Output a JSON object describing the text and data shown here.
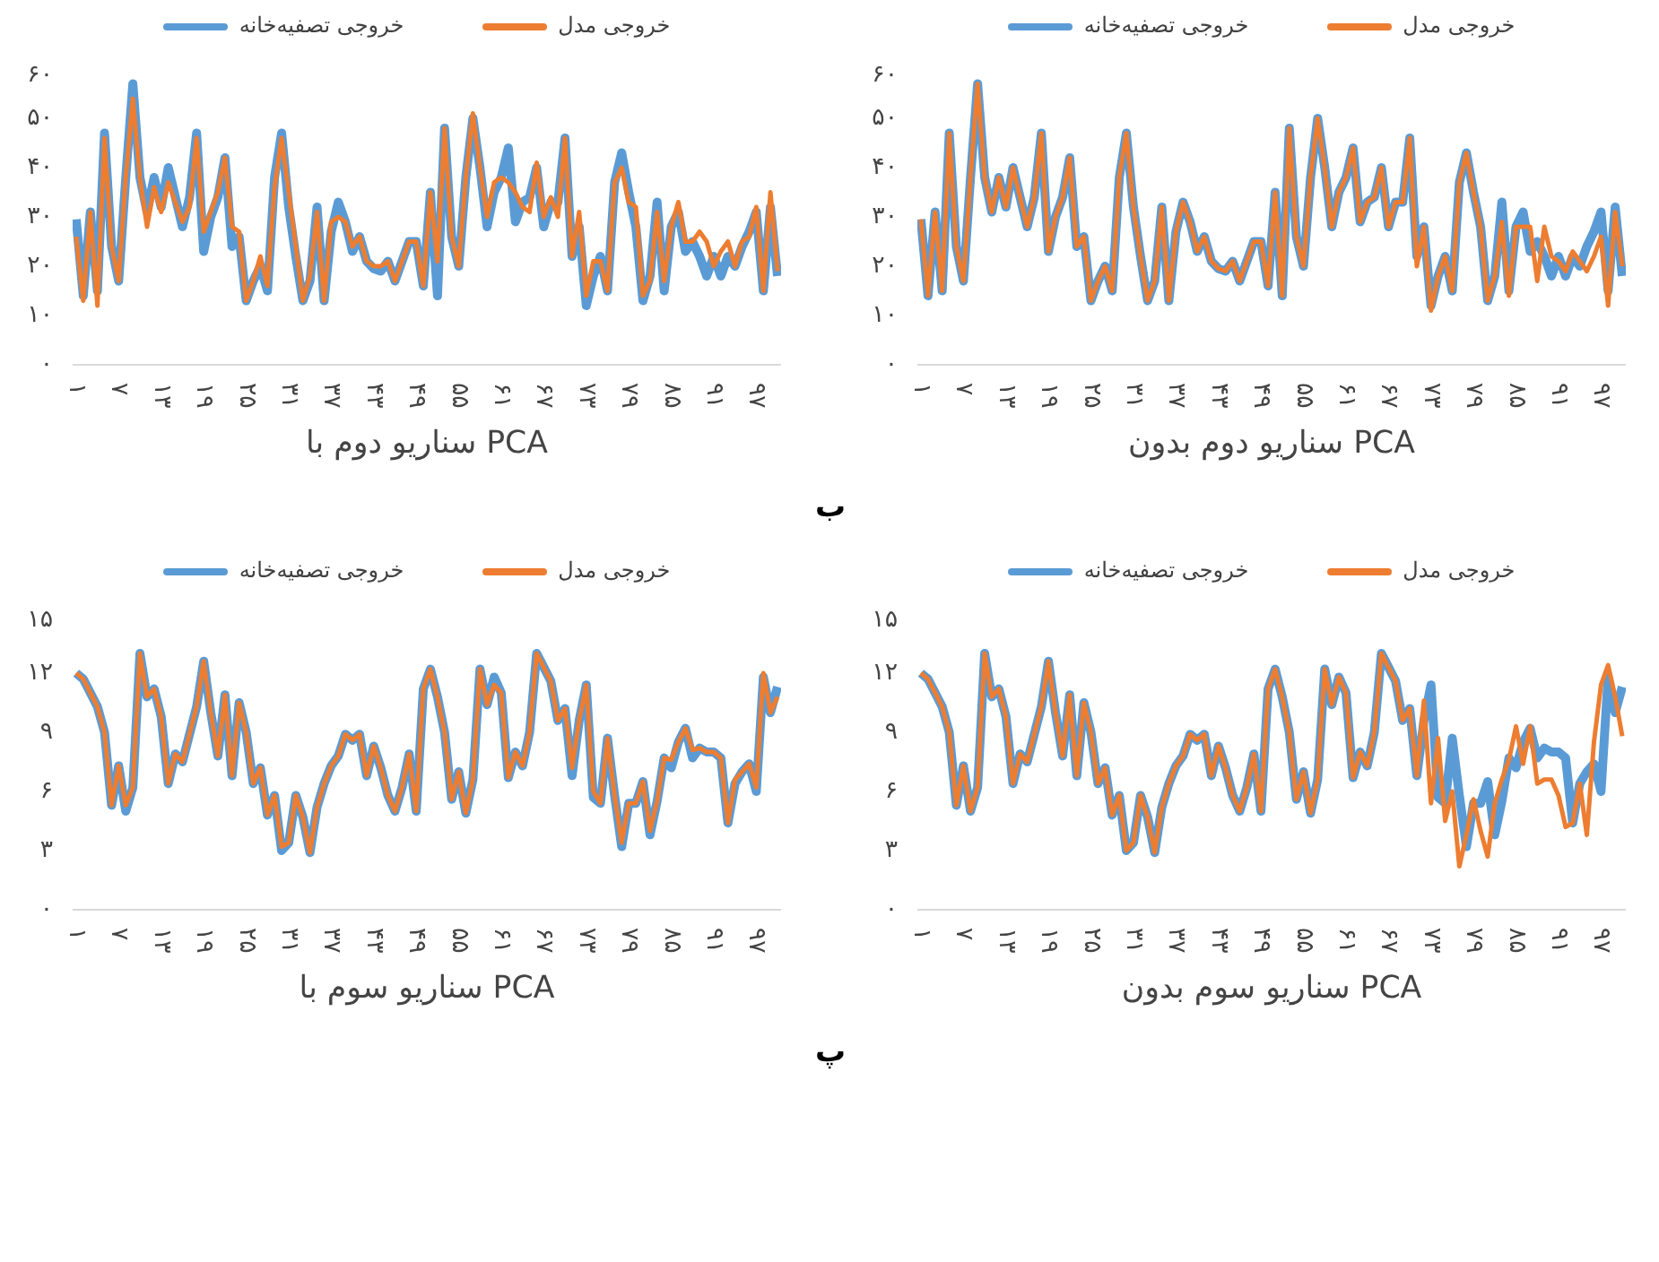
{
  "chart_data": [
    {
      "type": "line",
      "title": "سناریو دوم با PCA",
      "annotations": [
        "ب"
      ],
      "categories": [
        "۱",
        null,
        null,
        null,
        null,
        null,
        "۷",
        null,
        null,
        null,
        null,
        null,
        "۱۳",
        null,
        null,
        null,
        null,
        null,
        "۱۹",
        null,
        null,
        null,
        null,
        null,
        "۲۵",
        null,
        null,
        null,
        null,
        null,
        "۳۱",
        null,
        null,
        null,
        null,
        null,
        "۳۷",
        null,
        null,
        null,
        null,
        null,
        "۴۳",
        null,
        null,
        null,
        null,
        null,
        "۴۹",
        null,
        null,
        null,
        null,
        null,
        "۵۵",
        null,
        null,
        null,
        null,
        null,
        "۶۱",
        null,
        null,
        null,
        null,
        null,
        "۶۷",
        null,
        null,
        null,
        null,
        null,
        "۷۳",
        null,
        null,
        null,
        null,
        null,
        "۷۹",
        null,
        null,
        null,
        null,
        null,
        "۸۵",
        null,
        null,
        null,
        null,
        null,
        "۹۱",
        null,
        null,
        null,
        null,
        null,
        "۹۷",
        null,
        null,
        null
      ],
      "ylim": [
        0,
        60
      ],
      "yticks": [
        {
          "value": 0,
          "label": "۰"
        },
        {
          "value": 10,
          "label": "۱۰"
        },
        {
          "value": 20,
          "label": "۲۰"
        },
        {
          "value": 30,
          "label": "۳۰"
        },
        {
          "value": 40,
          "label": "۴۰"
        },
        {
          "value": 50,
          "label": "۵۰"
        },
        {
          "value": 60,
          "label": "۶۰"
        }
      ],
      "grid": false,
      "legend": "top",
      "series": [
        {
          "name": "خروجی تصفیه‌خانه",
          "color": "#5b9bd5",
          "values": [
            29.5,
            14,
            31,
            15,
            47,
            24,
            17,
            38,
            57,
            38,
            31,
            38,
            32,
            40,
            34,
            28,
            34,
            47,
            23,
            30,
            34,
            42,
            24,
            26,
            13,
            17,
            20,
            15,
            38,
            47,
            32,
            22,
            13,
            17,
            32,
            13,
            27,
            33,
            29,
            23,
            26,
            21,
            19.5,
            19,
            21,
            17,
            21,
            25,
            25,
            16,
            35,
            14,
            48,
            26,
            20,
            38,
            50,
            40,
            28,
            35,
            38,
            44,
            29,
            33,
            34,
            40,
            28,
            33,
            33,
            46,
            22,
            28,
            12,
            18,
            22,
            15,
            37,
            43,
            35,
            28,
            13,
            18,
            33,
            15,
            28,
            31,
            23,
            25,
            22,
            18,
            22,
            18,
            22,
            20,
            24,
            27,
            31,
            15,
            32,
            18
          ]
        },
        {
          "name": "خروجی مدل",
          "color": "#ed7d31",
          "values": [
            26,
            13,
            31,
            12,
            46,
            24,
            17,
            38,
            54,
            38,
            28,
            36,
            31,
            37,
            33,
            29,
            32,
            46,
            27,
            31,
            35,
            42,
            28,
            27,
            13,
            17,
            22,
            16,
            36,
            46,
            35,
            24,
            13,
            18,
            31,
            13,
            29,
            30,
            29,
            24,
            26,
            21,
            20,
            20,
            21,
            17,
            21,
            25,
            25,
            16,
            35,
            21,
            48,
            26,
            20,
            38,
            51,
            40,
            30,
            37,
            38,
            37,
            35,
            32,
            31,
            41,
            30,
            34,
            30,
            46,
            22,
            31,
            14,
            21,
            21,
            15,
            37,
            40,
            33,
            32,
            14,
            17,
            31,
            17,
            28,
            33,
            25,
            25,
            27,
            25,
            20,
            23,
            25,
            20,
            25,
            26,
            32,
            15,
            35,
            19
          ]
        }
      ]
    },
    {
      "type": "line",
      "title": "سناریو دوم بدون PCA",
      "categories": [
        "۱",
        null,
        null,
        null,
        null,
        null,
        "۷",
        null,
        null,
        null,
        null,
        null,
        "۱۳",
        null,
        null,
        null,
        null,
        null,
        "۱۹",
        null,
        null,
        null,
        null,
        null,
        "۲۵",
        null,
        null,
        null,
        null,
        null,
        "۳۱",
        null,
        null,
        null,
        null,
        null,
        "۳۷",
        null,
        null,
        null,
        null,
        null,
        "۴۳",
        null,
        null,
        null,
        null,
        null,
        "۴۹",
        null,
        null,
        null,
        null,
        null,
        "۵۵",
        null,
        null,
        null,
        null,
        null,
        "۶۱",
        null,
        null,
        null,
        null,
        null,
        "۶۷",
        null,
        null,
        null,
        null,
        null,
        "۷۳",
        null,
        null,
        null,
        null,
        null,
        "۷۹",
        null,
        null,
        null,
        null,
        null,
        "۸۵",
        null,
        null,
        null,
        null,
        null,
        "۹۱",
        null,
        null,
        null,
        null,
        null,
        "۹۷",
        null,
        null,
        null
      ],
      "ylim": [
        0,
        60
      ],
      "yticks": [
        {
          "value": 0,
          "label": "۰"
        },
        {
          "value": 10,
          "label": "۱۰"
        },
        {
          "value": 20,
          "label": "۲۰"
        },
        {
          "value": 30,
          "label": "۳۰"
        },
        {
          "value": 40,
          "label": "۴۰"
        },
        {
          "value": 50,
          "label": "۵۰"
        },
        {
          "value": 60,
          "label": "۶۰"
        }
      ],
      "grid": false,
      "legend": "top",
      "series": [
        {
          "name": "خروجی تصفیه‌خانه",
          "color": "#5b9bd5",
          "values": [
            29.5,
            14,
            31,
            15,
            47,
            24,
            17,
            38,
            57,
            38,
            31,
            38,
            32,
            40,
            34,
            28,
            34,
            47,
            23,
            30,
            34,
            42,
            24,
            26,
            13,
            17,
            20,
            15,
            38,
            47,
            32,
            22,
            13,
            17,
            32,
            13,
            27,
            33,
            29,
            23,
            26,
            21,
            19.5,
            19,
            21,
            17,
            21,
            25,
            25,
            16,
            35,
            14,
            48,
            26,
            20,
            38,
            50,
            40,
            28,
            35,
            38,
            44,
            29,
            33,
            34,
            40,
            28,
            33,
            33,
            46,
            22,
            28,
            12,
            18,
            22,
            15,
            37,
            43,
            35,
            28,
            13,
            18,
            33,
            15,
            28,
            31,
            23,
            25,
            22,
            18,
            22,
            18,
            22,
            20,
            24,
            27,
            31,
            15,
            32,
            18
          ]
        },
        {
          "name": "خروجی مدل",
          "color": "#ed7d31",
          "values": [
            29.5,
            14,
            31,
            15,
            47,
            24,
            17,
            38,
            57,
            38,
            31,
            38,
            32,
            40,
            34,
            28,
            34,
            47,
            23,
            30,
            34,
            42,
            24,
            26,
            13,
            17,
            20,
            15,
            38,
            47,
            32,
            22,
            13,
            17,
            32,
            13,
            27,
            33,
            29,
            23,
            26,
            21,
            19.5,
            19,
            21,
            17,
            21,
            25,
            25,
            16,
            35,
            14,
            48,
            26,
            20,
            38,
            50,
            40,
            28,
            35,
            38,
            44,
            29,
            33,
            34,
            40,
            28,
            33,
            33,
            46,
            20,
            28,
            11,
            18,
            22,
            15,
            37,
            43,
            35,
            28,
            13,
            18,
            29,
            14,
            28,
            28,
            28,
            17,
            28,
            22,
            21,
            19,
            23,
            21,
            19,
            22,
            26,
            12,
            31,
            20
          ]
        }
      ]
    },
    {
      "type": "line",
      "title": "سناریو سوم با PCA",
      "annotations": [
        "پ"
      ],
      "categories": [
        "۱",
        null,
        null,
        null,
        null,
        null,
        "۷",
        null,
        null,
        null,
        null,
        null,
        "۱۳",
        null,
        null,
        null,
        null,
        null,
        "۱۹",
        null,
        null,
        null,
        null,
        null,
        "۲۵",
        null,
        null,
        null,
        null,
        null,
        "۳۱",
        null,
        null,
        null,
        null,
        null,
        "۳۷",
        null,
        null,
        null,
        null,
        null,
        "۴۳",
        null,
        null,
        null,
        null,
        null,
        "۴۹",
        null,
        null,
        null,
        null,
        null,
        "۵۵",
        null,
        null,
        null,
        null,
        null,
        "۶۱",
        null,
        null,
        null,
        null,
        null,
        "۶۷",
        null,
        null,
        null,
        null,
        null,
        "۷۳",
        null,
        null,
        null,
        null,
        null,
        "۷۹",
        null,
        null,
        null,
        null,
        null,
        "۸۵",
        null,
        null,
        null,
        null,
        null,
        "۹۱",
        null,
        null,
        null,
        null,
        null,
        "۹۷",
        null,
        null,
        null
      ],
      "ylim": [
        0,
        15
      ],
      "yticks": [
        {
          "value": 0,
          "label": "۰"
        },
        {
          "value": 3,
          "label": "۳"
        },
        {
          "value": 6,
          "label": "۶"
        },
        {
          "value": 9,
          "label": "۹"
        },
        {
          "value": 12,
          "label": "۱۲"
        },
        {
          "value": 15,
          "label": "۱۵"
        }
      ],
      "grid": false,
      "legend": "top",
      "series": [
        {
          "name": "خروجی تصفیه‌خانه",
          "color": "#5b9bd5",
          "values": [
            12,
            11.7,
            11,
            10.3,
            9,
            5.3,
            7.3,
            5,
            6.2,
            13,
            10.8,
            11.2,
            9.8,
            6.4,
            7.9,
            7.5,
            8.9,
            10.3,
            12.6,
            10,
            7.8,
            10.9,
            6.8,
            10.5,
            9,
            6.4,
            7.2,
            4.8,
            5.8,
            3,
            3.4,
            5.8,
            4.7,
            2.9,
            5.2,
            6.4,
            7.3,
            7.8,
            8.9,
            8.6,
            8.9,
            6.8,
            8.3,
            7.2,
            5.8,
            5,
            6.2,
            7.9,
            5,
            11.2,
            12.2,
            10.8,
            9,
            5.6,
            7,
            4.9,
            6.6,
            12.2,
            10.4,
            11.8,
            11,
            6.7,
            8,
            7.3,
            9,
            13,
            12.3,
            11.6,
            9.6,
            10.2,
            6.8,
            9.6,
            11.4,
            5.7,
            5.4,
            8.7,
            5.8,
            3.2,
            5.4,
            5.4,
            6.5,
            3.8,
            5.5,
            7.7,
            7.2,
            8.5,
            9.2,
            7.7,
            8.2,
            8,
            8,
            7.7,
            4.4,
            6.4,
            7,
            7.4,
            6,
            11.8,
            10,
            11.3
          ]
        },
        {
          "name": "خروجی مدل",
          "color": "#ed7d31",
          "values": [
            12,
            11.7,
            11,
            10.3,
            9,
            5.3,
            7.3,
            5.3,
            6.2,
            13,
            10.8,
            11.2,
            9.8,
            6.4,
            7.9,
            7.5,
            8.9,
            10.3,
            12.6,
            10,
            7.8,
            10.9,
            6.8,
            10.5,
            9,
            6.4,
            7.2,
            4.8,
            5.8,
            3.2,
            3.4,
            5.8,
            4.7,
            2.9,
            5.2,
            6.4,
            7.3,
            7.8,
            8.9,
            8.6,
            8.9,
            6.8,
            8.3,
            7.2,
            5.8,
            5,
            6.2,
            7.9,
            5,
            11.2,
            12.2,
            10.8,
            9,
            5.6,
            7,
            4.9,
            6.6,
            12.2,
            10.4,
            11.4,
            11,
            6.7,
            8,
            7.3,
            9,
            13,
            12.3,
            11.6,
            9.6,
            10.2,
            7.2,
            9.6,
            11.4,
            6,
            5.4,
            8.7,
            5.8,
            3.4,
            5.4,
            5.4,
            6.5,
            4,
            5.5,
            7.7,
            7.6,
            8.5,
            9.2,
            8.1,
            8.2,
            8,
            8,
            7.7,
            4.4,
            6.6,
            7,
            7.4,
            6.2,
            12,
            10,
            10.8
          ]
        }
      ]
    },
    {
      "type": "line",
      "title": "سناریو سوم بدون PCA",
      "categories": [
        "۱",
        null,
        null,
        null,
        null,
        null,
        "۷",
        null,
        null,
        null,
        null,
        null,
        "۱۳",
        null,
        null,
        null,
        null,
        null,
        "۱۹",
        null,
        null,
        null,
        null,
        null,
        "۲۵",
        null,
        null,
        null,
        null,
        null,
        "۳۱",
        null,
        null,
        null,
        null,
        null,
        "۳۷",
        null,
        null,
        null,
        null,
        null,
        "۴۳",
        null,
        null,
        null,
        null,
        null,
        "۴۹",
        null,
        null,
        null,
        null,
        null,
        "۵۵",
        null,
        null,
        null,
        null,
        null,
        "۶۱",
        null,
        null,
        null,
        null,
        null,
        "۶۷",
        null,
        null,
        null,
        null,
        null,
        "۷۳",
        null,
        null,
        null,
        null,
        null,
        "۷۹",
        null,
        null,
        null,
        null,
        null,
        "۸۵",
        null,
        null,
        null,
        null,
        null,
        "۹۱",
        null,
        null,
        null,
        null,
        null,
        "۹۷",
        null,
        null,
        null
      ],
      "ylim": [
        0,
        15
      ],
      "yticks": [
        {
          "value": 0,
          "label": "۰"
        },
        {
          "value": 3,
          "label": "۳"
        },
        {
          "value": 6,
          "label": "۶"
        },
        {
          "value": 9,
          "label": "۹"
        },
        {
          "value": 12,
          "label": "۱۲"
        },
        {
          "value": 15,
          "label": "۱۵"
        }
      ],
      "grid": false,
      "legend": "top",
      "series": [
        {
          "name": "خروجی تصفیه‌خانه",
          "color": "#5b9bd5",
          "values": [
            12,
            11.7,
            11,
            10.3,
            9,
            5.3,
            7.3,
            5,
            6.2,
            13,
            10.8,
            11.2,
            9.8,
            6.4,
            7.9,
            7.5,
            8.9,
            10.3,
            12.6,
            10,
            7.8,
            10.9,
            6.8,
            10.5,
            9,
            6.4,
            7.2,
            4.8,
            5.8,
            3,
            3.4,
            5.8,
            4.7,
            2.9,
            5.2,
            6.4,
            7.3,
            7.8,
            8.9,
            8.6,
            8.9,
            6.8,
            8.3,
            7.2,
            5.8,
            5,
            6.2,
            7.9,
            5,
            11.2,
            12.2,
            10.8,
            9,
            5.6,
            7,
            4.9,
            6.6,
            12.2,
            10.4,
            11.8,
            11,
            6.7,
            8,
            7.3,
            9,
            13,
            12.3,
            11.6,
            9.6,
            10.2,
            6.8,
            9.6,
            11.4,
            5.7,
            5.4,
            8.7,
            5.8,
            3.2,
            5.4,
            5.4,
            6.5,
            3.8,
            5.5,
            7.7,
            7.2,
            8.5,
            9.2,
            7.7,
            8.2,
            8,
            8,
            7.7,
            4.4,
            6.4,
            7,
            7.4,
            6,
            11.8,
            10,
            11.3
          ]
        },
        {
          "name": "خروجی مدل",
          "color": "#ed7d31",
          "values": [
            12,
            11.7,
            11,
            10.3,
            9,
            5.3,
            7.3,
            5,
            6.2,
            13,
            10.8,
            11.2,
            9.8,
            6.4,
            7.9,
            7.5,
            8.9,
            10.3,
            12.6,
            10,
            7.8,
            10.9,
            6.8,
            10.5,
            9,
            6.4,
            7.2,
            4.8,
            5.8,
            3,
            3.4,
            5.8,
            4.7,
            2.9,
            5.2,
            6.4,
            7.3,
            7.8,
            8.9,
            8.6,
            8.9,
            6.8,
            8.3,
            7.2,
            5.8,
            5,
            6.2,
            7.9,
            5,
            11.2,
            12.2,
            10.8,
            9,
            5.6,
            7,
            4.9,
            6.6,
            12.2,
            10.4,
            11.8,
            11,
            6.7,
            8,
            7.3,
            9,
            13,
            12.3,
            11.6,
            9.6,
            10.2,
            6.8,
            10.6,
            5.4,
            8.7,
            4.5,
            6,
            2.2,
            3.8,
            5.6,
            4,
            2.7,
            5.4,
            6.6,
            7.6,
            9.3,
            7.4,
            9.3,
            6.4,
            6.6,
            6.6,
            5.8,
            4.2,
            4.4,
            6.4,
            3.8,
            8.5,
            11.4,
            12.4,
            10.8,
            8.8
          ]
        }
      ]
    }
  ]
}
